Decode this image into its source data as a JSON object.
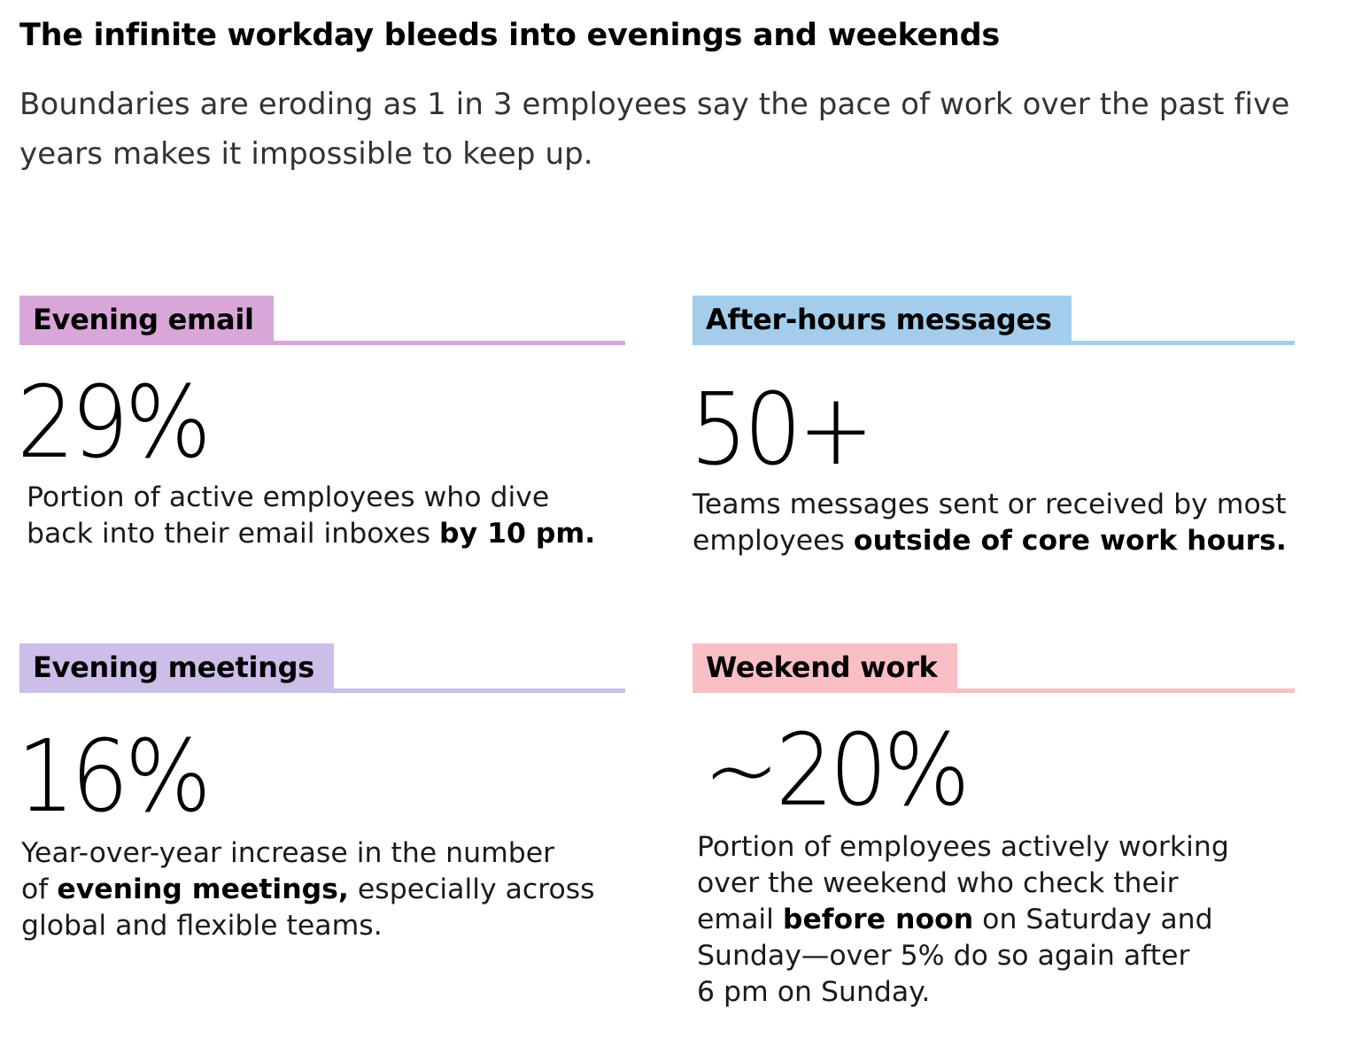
{
  "title": "The infinite workday bleeds into evenings and weekends",
  "subtitle": "Boundaries are eroding as 1 in 3 employees say the pace of work over the past five years makes it impossible to keep up.",
  "cards": [
    {
      "label": "Evening email",
      "color": "#d9a6d9",
      "stat": "29%",
      "desc_line1": "Portion of active employees who dive",
      "desc_pre": "back into their email inboxes ",
      "desc_bold": "by 10 pm."
    },
    {
      "label": "After-hours messages",
      "color": "#a3cdea",
      "stat": "50+",
      "desc_line1": "Teams messages sent or received by most",
      "desc_pre": "employees ",
      "desc_bold": "outside of core work hours."
    },
    {
      "label": "Evening meetings",
      "color": "#cdbde9",
      "stat": "16%",
      "desc_line1": "Year-over-year increase in the number",
      "desc_pre": "of ",
      "desc_bold": "evening meetings,",
      "desc_post": " especially across",
      "desc_line3": "global and flexible teams."
    },
    {
      "label": "Weekend work",
      "color": "#f9bfc5",
      "stat": "~20%",
      "desc_line1": "Portion of employees actively working",
      "desc_line2": "over the weekend who check their",
      "desc_pre": "email ",
      "desc_bold": "before noon",
      "desc_post": " on Saturday and",
      "desc_line4": "Sunday—over 5% do so again after",
      "desc_line5": "6 pm on Sunday."
    }
  ]
}
